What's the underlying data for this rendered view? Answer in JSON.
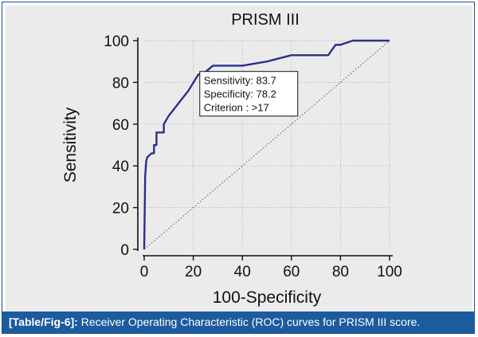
{
  "chart_data": {
    "type": "line",
    "title": "PRISM III",
    "xlabel": "100-Specificity",
    "ylabel": "Sensitivity",
    "xlim": [
      0,
      100
    ],
    "ylim": [
      0,
      100
    ],
    "xticks": [
      0,
      20,
      40,
      60,
      80,
      100
    ],
    "yticks": [
      0,
      20,
      40,
      60,
      80,
      100
    ],
    "grid": true,
    "series": [
      {
        "name": "ROC curve",
        "color": "#2b2f8f",
        "x": [
          0,
          0.4,
          0.8,
          1.2,
          2,
          3,
          4,
          4,
          5,
          5,
          8,
          8,
          10,
          14,
          18,
          22,
          25,
          26,
          28,
          40,
          50,
          60,
          65,
          73,
          75,
          78,
          80,
          85,
          100
        ],
        "y": [
          0,
          35,
          42,
          44,
          45,
          46,
          46,
          50,
          50,
          56,
          56,
          60,
          64,
          70,
          76,
          83.7,
          85,
          86,
          88,
          88,
          90,
          93,
          93,
          93,
          93,
          98,
          98,
          100,
          100
        ]
      },
      {
        "name": "Reference line",
        "color": "#555555",
        "style": "dotted",
        "x": [
          0,
          100
        ],
        "y": [
          0,
          100
        ]
      }
    ],
    "annotation": {
      "lines": [
        "Sensitivity: 83.7",
        "Specificity: 78.2",
        "Criterion : >17"
      ],
      "point": [
        22,
        83.7
      ]
    }
  },
  "caption": {
    "label": "[Table/Fig-6]:",
    "text": "Receiver Operating Characteristic (ROC) curves for PRISM III score."
  }
}
